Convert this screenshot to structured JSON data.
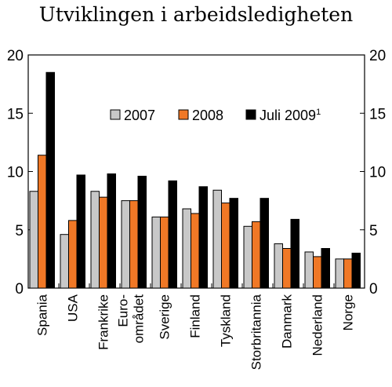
{
  "chart_data": {
    "type": "bar",
    "title": "Utviklingen i arbeidsledigheten",
    "categories": [
      "Spania",
      "USA",
      "Frankrike",
      "Euro-\nområdet",
      "Sverige",
      "Finland",
      "Tyskland",
      "Storbritannia",
      "Danmark",
      "Nederland",
      "Norge"
    ],
    "series": [
      {
        "name": "2007",
        "values": [
          8.3,
          4.6,
          8.3,
          7.5,
          6.1,
          6.8,
          8.4,
          5.3,
          3.8,
          3.1,
          2.5
        ]
      },
      {
        "name": "2008",
        "values": [
          11.4,
          5.8,
          7.8,
          7.5,
          6.1,
          6.4,
          7.3,
          5.7,
          3.4,
          2.7,
          2.5
        ]
      },
      {
        "name": "Juli 2009",
        "sup": "1",
        "values": [
          18.5,
          9.7,
          9.8,
          9.6,
          9.2,
          8.7,
          7.7,
          7.7,
          5.9,
          3.4,
          3.0
        ]
      }
    ],
    "ylim": [
      0,
      20
    ],
    "yticks": [
      "0",
      "5",
      "10",
      "15",
      "20"
    ],
    "y_axis_right": true,
    "grid": false,
    "legend_position": "top-right",
    "colors": [
      "#c8c8c8",
      "#f07826",
      "#000000"
    ]
  }
}
